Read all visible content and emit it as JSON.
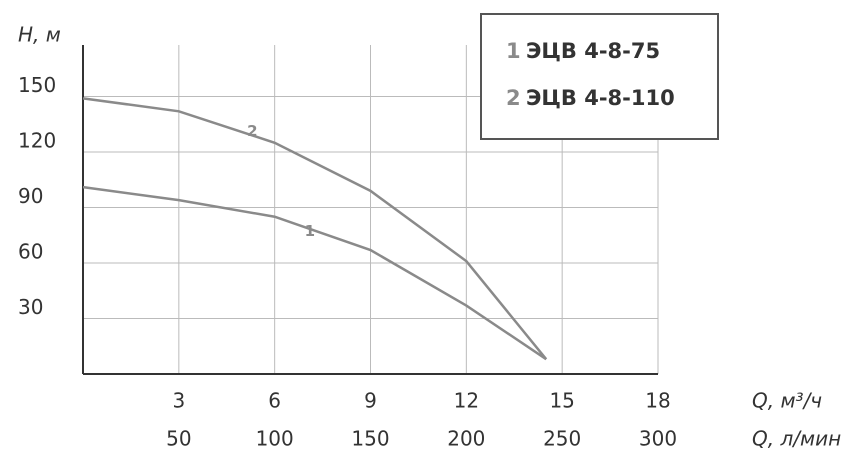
{
  "chart_data": {
    "type": "line",
    "y_label": "H, м",
    "x_label": "Q, м³/ч",
    "x2_label": "Q, л/мин",
    "x": [
      0,
      3,
      6,
      9,
      12,
      14.5
    ],
    "series": [
      {
        "label": "1",
        "name": "ЭЦВ 4-8-75",
        "color": "#8a8a8a",
        "values": [
          101,
          94,
          85,
          67,
          37,
          8
        ]
      },
      {
        "label": "2",
        "name": "ЭЦВ 4-8-110",
        "color": "#8a8a8a",
        "values": [
          149,
          142,
          125,
          99,
          61,
          8
        ]
      }
    ],
    "xlim": [
      0,
      18
    ],
    "xticks": [
      3,
      6,
      9,
      12,
      15,
      18
    ],
    "x2lim": [
      0,
      300
    ],
    "x2ticks": [
      50,
      100,
      150,
      200,
      250,
      300
    ],
    "ylim": [
      0,
      180
    ],
    "yticks": [
      30,
      60,
      90,
      120,
      150
    ],
    "grid": true
  }
}
